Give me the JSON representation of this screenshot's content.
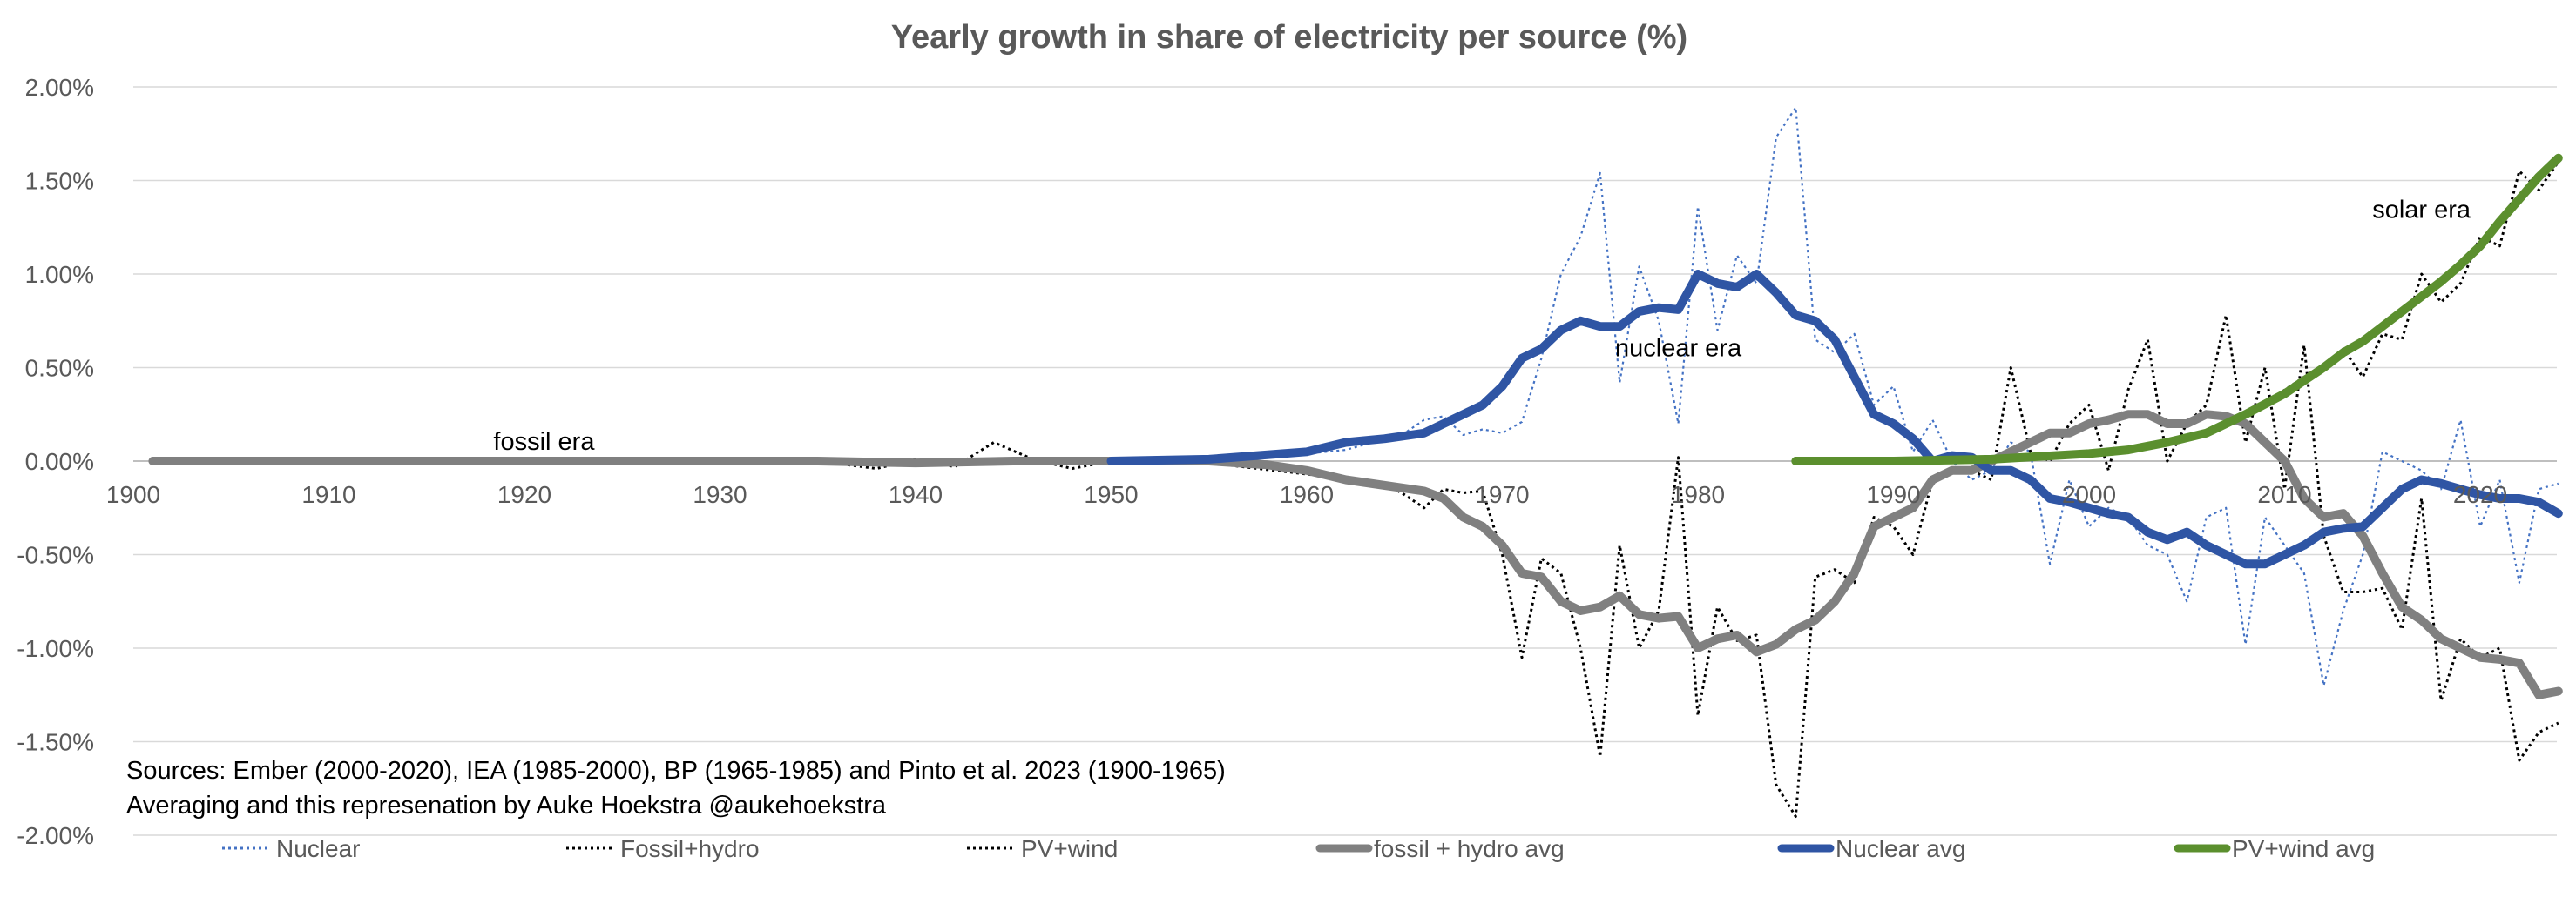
{
  "chart_data": {
    "type": "line",
    "title": "Yearly growth in share of electricity per source (%)",
    "xlabel": "",
    "ylabel": "",
    "xlim": [
      1900,
      2024
    ],
    "ylim": [
      -2.0,
      2.0
    ],
    "x_ticks": [
      1900,
      1910,
      1920,
      1930,
      1940,
      1950,
      1960,
      1970,
      1980,
      1990,
      2000,
      2010,
      2020
    ],
    "x_tick_labels": [
      "1900",
      "1910",
      "1920",
      "1930",
      "1940",
      "1950",
      "1960",
      "1970",
      "1980",
      "1990",
      "2000",
      "2010",
      "2020"
    ],
    "y_ticks": [
      -2.0,
      -1.5,
      -1.0,
      -0.5,
      0.0,
      0.5,
      1.0,
      1.5,
      2.0
    ],
    "y_tick_labels": [
      "-2.00%",
      "-1.50%",
      "-1.00%",
      "-0.50%",
      "0.00%",
      "0.50%",
      "1.00%",
      "1.50%",
      "2.00%"
    ],
    "grid": true,
    "legend_position": "bottom",
    "annotations": [
      {
        "text": "fossil era",
        "x": 1921,
        "y": 0.06
      },
      {
        "text": "nuclear era",
        "x": 1979,
        "y": 0.56
      },
      {
        "text": "solar era",
        "x": 2017,
        "y": 1.3
      }
    ],
    "source_notes": [
      "Sources: Ember (2000-2020), IEA (1985-2000), BP (1965-1985) and Pinto et al. 2023 (1900-1965)",
      "Averaging and this represenation by Auke Hoekstra @aukehoekstra"
    ],
    "series": [
      {
        "name": "Nuclear",
        "color": "#4472c4",
        "style": "dotted",
        "x": [
          1955,
          1956,
          1957,
          1958,
          1959,
          1960,
          1961,
          1962,
          1963,
          1964,
          1965,
          1966,
          1967,
          1968,
          1969,
          1970,
          1971,
          1972,
          1973,
          1974,
          1975,
          1976,
          1977,
          1978,
          1979,
          1980,
          1981,
          1982,
          1983,
          1984,
          1985,
          1986,
          1987,
          1988,
          1989,
          1990,
          1991,
          1992,
          1993,
          1994,
          1995,
          1996,
          1997,
          1998,
          1999,
          2000,
          2001,
          2002,
          2003,
          2004,
          2005,
          2006,
          2007,
          2008,
          2009,
          2010,
          2011,
          2012,
          2013,
          2014,
          2015,
          2016,
          2017,
          2018,
          2019,
          2020,
          2021,
          2022,
          2023,
          2024
        ],
        "values": [
          0.0,
          0.01,
          0.02,
          0.02,
          0.03,
          0.04,
          0.05,
          0.06,
          0.09,
          0.12,
          0.15,
          0.22,
          0.24,
          0.14,
          0.17,
          0.15,
          0.21,
          0.55,
          1.0,
          1.2,
          1.54,
          0.42,
          1.04,
          0.75,
          0.2,
          1.36,
          0.7,
          1.1,
          0.95,
          1.73,
          1.89,
          0.65,
          0.58,
          0.68,
          0.3,
          0.4,
          0.05,
          0.22,
          0.0,
          -0.1,
          -0.05,
          0.1,
          0.05,
          -0.55,
          -0.1,
          -0.35,
          -0.25,
          -0.3,
          -0.45,
          -0.5,
          -0.75,
          -0.3,
          -0.25,
          -0.98,
          -0.3,
          -0.45,
          -0.6,
          -1.2,
          -0.8,
          -0.5,
          0.05,
          0.0,
          -0.05,
          -0.15,
          0.22,
          -0.35,
          -0.1,
          -0.65,
          -0.15,
          -0.12
        ]
      },
      {
        "name": "Fossil+hydro",
        "color": "#000000",
        "style": "dotted",
        "x": [
          1901,
          1905,
          1910,
          1915,
          1920,
          1925,
          1930,
          1935,
          1938,
          1940,
          1942,
          1944,
          1946,
          1948,
          1950,
          1955,
          1960,
          1962,
          1964,
          1965,
          1966,
          1967,
          1968,
          1969,
          1970,
          1971,
          1972,
          1973,
          1974,
          1975,
          1976,
          1977,
          1978,
          1979,
          1980,
          1981,
          1982,
          1983,
          1984,
          1985,
          1986,
          1987,
          1988,
          1989,
          1990,
          1991,
          1992,
          1993,
          1994,
          1995,
          1996,
          1997,
          1998,
          1999,
          2000,
          2001,
          2002,
          2003,
          2004,
          2005,
          2006,
          2007,
          2008,
          2009,
          2010,
          2011,
          2012,
          2013,
          2014,
          2015,
          2016,
          2017,
          2018,
          2019,
          2020,
          2021,
          2022,
          2023,
          2024
        ],
        "values": [
          0.0,
          0.0,
          0.0,
          -0.01,
          0.0,
          0.0,
          0.0,
          0.0,
          -0.04,
          0.01,
          -0.03,
          0.1,
          0.01,
          -0.04,
          0.0,
          -0.01,
          -0.07,
          -0.1,
          -0.12,
          -0.18,
          -0.25,
          -0.15,
          -0.17,
          -0.16,
          -0.5,
          -1.05,
          -0.52,
          -0.6,
          -1.0,
          -1.58,
          -0.45,
          -1.0,
          -0.8,
          0.02,
          -1.36,
          -0.78,
          -0.96,
          -0.93,
          -1.73,
          -1.9,
          -0.62,
          -0.58,
          -0.65,
          -0.3,
          -0.35,
          -0.5,
          -0.1,
          -0.05,
          -0.05,
          -0.1,
          0.5,
          0.05,
          0.0,
          0.2,
          0.3,
          -0.05,
          0.38,
          0.65,
          0.0,
          0.2,
          0.3,
          0.78,
          0.1,
          0.5,
          -0.15,
          0.62,
          -0.4,
          -0.7,
          -0.7,
          -0.68,
          -0.9,
          -0.2,
          -1.28,
          -0.95,
          -1.05,
          -1.0,
          -1.6,
          -1.45,
          -1.4
        ]
      },
      {
        "name": "PV+wind",
        "color": "#000000",
        "style": "dotted",
        "x": [
          1985,
          1990,
          1995,
          2000,
          2002,
          2004,
          2006,
          2008,
          2010,
          2011,
          2012,
          2013,
          2014,
          2015,
          2016,
          2017,
          2018,
          2019,
          2020,
          2021,
          2022,
          2023,
          2024
        ],
        "values": [
          0.0,
          0.01,
          0.02,
          0.04,
          0.06,
          0.1,
          0.15,
          0.25,
          0.38,
          0.45,
          0.5,
          0.6,
          0.45,
          0.68,
          0.65,
          1.0,
          0.85,
          0.95,
          1.2,
          1.15,
          1.55,
          1.45,
          1.6
        ]
      },
      {
        "name": "fossil + hydro avg",
        "color": "#808080",
        "style": "solid",
        "width": 10,
        "x": [
          1901,
          1910,
          1920,
          1930,
          1935,
          1940,
          1945,
          1950,
          1955,
          1958,
          1960,
          1962,
          1964,
          1966,
          1967,
          1968,
          1969,
          1970,
          1971,
          1972,
          1973,
          1974,
          1975,
          1976,
          1977,
          1978,
          1979,
          1980,
          1981,
          1982,
          1983,
          1984,
          1985,
          1986,
          1987,
          1988,
          1989,
          1990,
          1991,
          1992,
          1993,
          1994,
          1995,
          1996,
          1997,
          1998,
          1999,
          2000,
          2001,
          2002,
          2003,
          2004,
          2005,
          2006,
          2007,
          2008,
          2009,
          2010,
          2011,
          2012,
          2013,
          2014,
          2015,
          2016,
          2017,
          2018,
          2019,
          2020,
          2021,
          2022,
          2023,
          2024
        ],
        "values": [
          0.0,
          0.0,
          0.0,
          0.0,
          0.0,
          -0.01,
          0.0,
          0.0,
          0.0,
          -0.02,
          -0.05,
          -0.1,
          -0.13,
          -0.16,
          -0.2,
          -0.3,
          -0.35,
          -0.45,
          -0.6,
          -0.62,
          -0.75,
          -0.8,
          -0.78,
          -0.72,
          -0.82,
          -0.84,
          -0.83,
          -1.0,
          -0.95,
          -0.93,
          -1.02,
          -0.98,
          -0.9,
          -0.85,
          -0.75,
          -0.6,
          -0.35,
          -0.3,
          -0.25,
          -0.1,
          -0.05,
          -0.05,
          0.0,
          0.05,
          0.1,
          0.15,
          0.15,
          0.2,
          0.22,
          0.25,
          0.25,
          0.2,
          0.2,
          0.25,
          0.24,
          0.2,
          0.1,
          0.0,
          -0.2,
          -0.3,
          -0.28,
          -0.4,
          -0.6,
          -0.78,
          -0.85,
          -0.95,
          -1.0,
          -1.05,
          -1.06,
          -1.08,
          -1.25,
          -1.23
        ]
      },
      {
        "name": "Nuclear avg",
        "color": "#2f55a4",
        "style": "solid",
        "width": 10,
        "x": [
          1950,
          1955,
          1960,
          1962,
          1964,
          1966,
          1967,
          1968,
          1969,
          1970,
          1971,
          1972,
          1973,
          1974,
          1975,
          1976,
          1977,
          1978,
          1979,
          1980,
          1981,
          1982,
          1983,
          1984,
          1985,
          1986,
          1987,
          1988,
          1989,
          1990,
          1991,
          1992,
          1993,
          1994,
          1995,
          1996,
          1997,
          1998,
          1999,
          2000,
          2001,
          2002,
          2003,
          2004,
          2005,
          2006,
          2007,
          2008,
          2009,
          2010,
          2011,
          2012,
          2013,
          2014,
          2015,
          2016,
          2017,
          2018,
          2019,
          2020,
          2021,
          2022,
          2023,
          2024
        ],
        "values": [
          0.0,
          0.01,
          0.05,
          0.1,
          0.12,
          0.15,
          0.2,
          0.25,
          0.3,
          0.4,
          0.55,
          0.6,
          0.7,
          0.75,
          0.72,
          0.72,
          0.8,
          0.82,
          0.81,
          1.0,
          0.95,
          0.93,
          1.0,
          0.9,
          0.78,
          0.75,
          0.65,
          0.45,
          0.25,
          0.2,
          0.12,
          0.0,
          0.03,
          0.02,
          -0.05,
          -0.05,
          -0.1,
          -0.2,
          -0.22,
          -0.25,
          -0.28,
          -0.3,
          -0.38,
          -0.42,
          -0.38,
          -0.45,
          -0.5,
          -0.55,
          -0.55,
          -0.5,
          -0.45,
          -0.38,
          -0.36,
          -0.35,
          -0.25,
          -0.15,
          -0.1,
          -0.12,
          -0.15,
          -0.18,
          -0.2,
          -0.2,
          -0.22,
          -0.28
        ]
      },
      {
        "name": "PV+wind avg",
        "color": "#5b8f2e",
        "style": "solid",
        "width": 10,
        "x": [
          1985,
          1990,
          1995,
          2000,
          2002,
          2004,
          2006,
          2008,
          2010,
          2011,
          2012,
          2013,
          2014,
          2015,
          2016,
          2017,
          2018,
          2019,
          2020,
          2021,
          2022,
          2023,
          2024
        ],
        "values": [
          0.0,
          0.0,
          0.01,
          0.04,
          0.06,
          0.1,
          0.15,
          0.25,
          0.36,
          0.43,
          0.5,
          0.58,
          0.64,
          0.72,
          0.8,
          0.88,
          0.96,
          1.05,
          1.15,
          1.28,
          1.4,
          1.52,
          1.62
        ]
      }
    ]
  }
}
